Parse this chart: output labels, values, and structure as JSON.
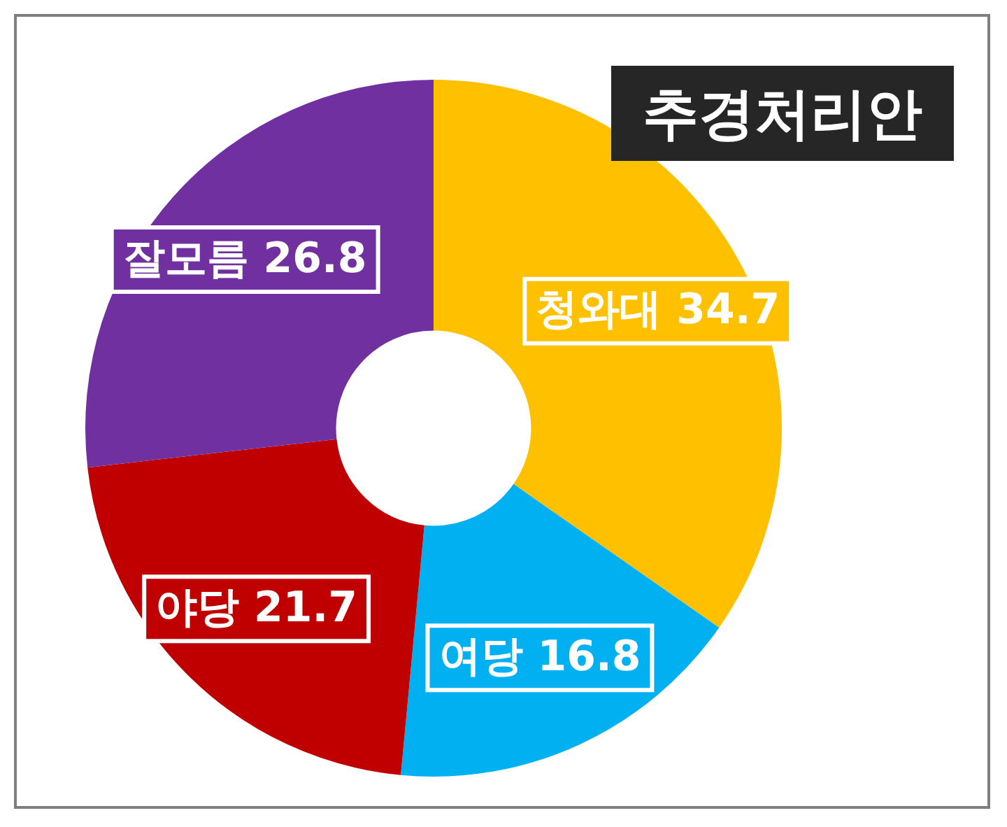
{
  "chart_data": {
    "type": "donut",
    "title": "추경처리안",
    "categories": [
      "청와대",
      "여당",
      "야당",
      "잘모름"
    ],
    "values": [
      34.7,
      16.8,
      21.7,
      26.8
    ],
    "colors": [
      "#ffc000",
      "#00b0f0",
      "#c00000",
      "#7030a0"
    ],
    "data_labels": true,
    "legend": false
  }
}
